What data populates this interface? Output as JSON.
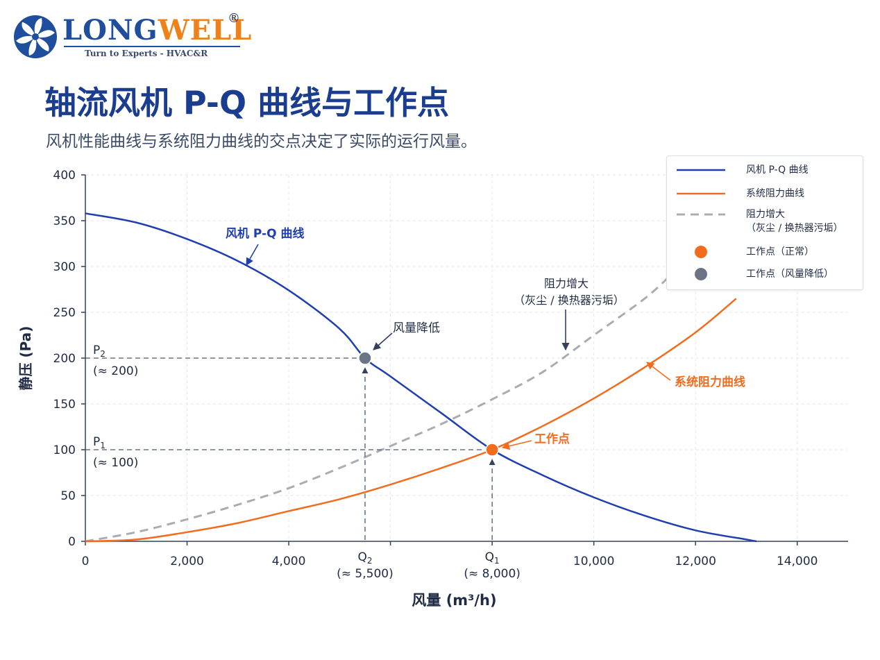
{
  "brand": {
    "logo_wordmark_part1": "LONG",
    "logo_wordmark_part2": "WELL",
    "registered_mark": "®",
    "tagline": "Turn to Experts - HVAC&R",
    "fan_icon": "fan-logo-icon"
  },
  "header": {
    "title": "轴流风机 P-Q 曲线与工作点",
    "subtitle": "风机性能曲线与系统阻力曲线的交点决定了实际的运行风量。"
  },
  "colors": {
    "fan_curve": "#1f3fb0",
    "system_curve": "#f36b1c",
    "increased_resistance": "#a9adb3",
    "normal_point": "#f36b1c",
    "reduced_point": "#6b7485",
    "axis": "#33415c",
    "title": "#1a3d8f"
  },
  "chart_data": {
    "type": "line",
    "xlabel": "风量 (m³/h)",
    "ylabel": "静压 (Pa)",
    "xlim": [
      0,
      15000
    ],
    "ylim": [
      0,
      400
    ],
    "x_ticks": [
      0,
      2000,
      4000,
      6000,
      8000,
      10000,
      12000,
      14000
    ],
    "x_tick_labels": [
      "0",
      "2,000",
      "4,000",
      "",
      "",
      "10,000",
      "12,000",
      "14,000"
    ],
    "y_ticks": [
      0,
      50,
      100,
      150,
      200,
      250,
      300,
      350,
      400
    ],
    "y_tick_labels": [
      "0",
      "50",
      "100",
      "150",
      "200",
      "250",
      "300",
      "350",
      "400"
    ],
    "grid": true,
    "legend_position": "top-right",
    "series": [
      {
        "name": "风机 P-Q 曲线",
        "style": "solid",
        "x": [
          0,
          1000,
          2000,
          3000,
          4000,
          5000,
          5500,
          6000,
          7000,
          8000,
          9000,
          10000,
          11000,
          12000,
          13000,
          13200
        ],
        "y": [
          358,
          348,
          330,
          306,
          274,
          232,
          200,
          180,
          140,
          100,
          72,
          48,
          28,
          12,
          2,
          0
        ]
      },
      {
        "name": "系统阻力曲线",
        "style": "solid",
        "x": [
          0,
          1000,
          2000,
          3000,
          4000,
          5000,
          6000,
          7000,
          8000,
          9000,
          10000,
          11000,
          12000,
          12800
        ],
        "y": [
          0,
          2,
          10,
          20,
          33,
          46,
          62,
          80,
          100,
          126,
          156,
          190,
          228,
          265
        ]
      },
      {
        "name": "阻力增大",
        "name_line2": "（灰尘 / 换热器污垢）",
        "style": "dashed",
        "x": [
          0,
          1000,
          2000,
          3000,
          4000,
          5000,
          6000,
          7000,
          8000,
          9000,
          10000,
          11000,
          11500
        ],
        "y": [
          0,
          10,
          24,
          40,
          58,
          80,
          104,
          128,
          155,
          185,
          225,
          265,
          290
        ]
      }
    ],
    "points": [
      {
        "name": "工作点（正常）",
        "x": 8000,
        "y": 100,
        "label": "工作点",
        "q_label": "Q",
        "q_sub": "1",
        "q_value": "(≈ 8,000)",
        "p_label": "P",
        "p_sub": "1",
        "p_value": "(≈ 100)"
      },
      {
        "name": "工作点（风量降低）",
        "x": 5500,
        "y": 200,
        "label": "风量降低",
        "q_label": "Q",
        "q_sub": "2",
        "q_value": "(≈ 5,500)",
        "p_label": "P",
        "p_sub": "2",
        "p_value": "(≈ 200)"
      }
    ],
    "annotations": {
      "fan_curve_label": "风机 P-Q 曲线",
      "system_curve_label": "系统阻力曲线",
      "increased_label_line1": "阻力增大",
      "increased_label_line2": "（灰尘 / 换热器污垢）"
    }
  }
}
